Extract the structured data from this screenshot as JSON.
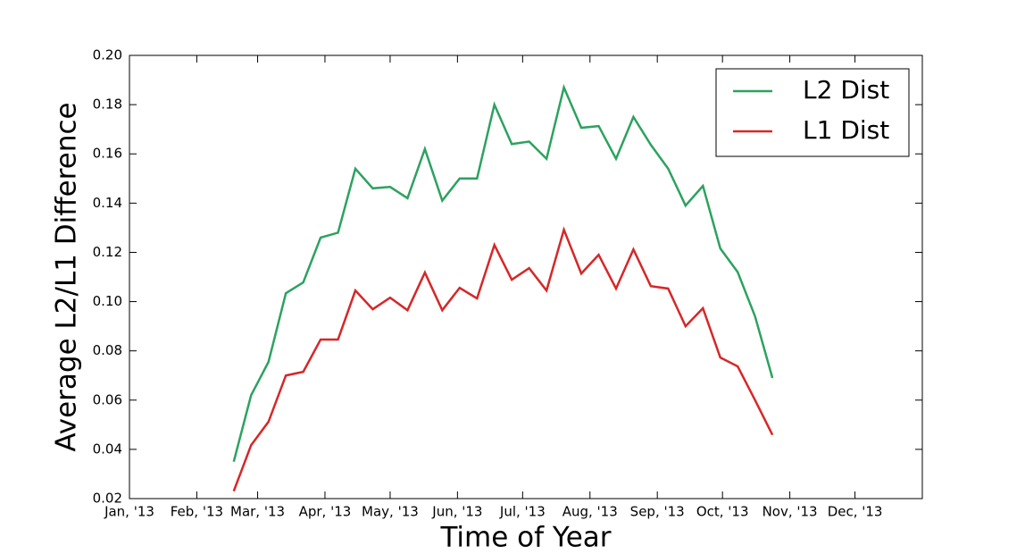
{
  "chart_data": {
    "type": "line",
    "xlabel": "Time of Year",
    "ylabel": "Average L2/L1 Difference",
    "x": [
      48,
      56,
      64,
      72,
      80,
      88,
      96,
      104,
      112,
      120,
      128,
      136,
      144,
      152,
      160,
      168,
      176,
      184,
      192,
      200,
      208,
      216,
      224,
      232,
      240,
      248,
      256,
      264,
      272,
      280,
      288,
      296
    ],
    "series": [
      {
        "name": "L2 Dist",
        "color": "#2ca25f",
        "values": [
          0.035,
          0.062,
          0.0755,
          0.1034,
          0.1078,
          0.126,
          0.128,
          0.154,
          0.146,
          0.1466,
          0.142,
          0.162,
          0.141,
          0.15,
          0.15,
          0.18,
          0.164,
          0.165,
          0.158,
          0.187,
          0.1706,
          0.1713,
          0.158,
          0.175,
          0.1637,
          0.154,
          0.139,
          0.147,
          0.1216,
          0.112,
          0.094,
          0.069
        ]
      },
      {
        "name": "L1 Dist",
        "color": "#d62728",
        "values": [
          0.023,
          0.0417,
          0.0512,
          0.07,
          0.0715,
          0.0846,
          0.0846,
          0.1045,
          0.0969,
          0.1016,
          0.0965,
          0.1118,
          0.0965,
          0.1056,
          0.1013,
          0.123,
          0.1089,
          0.1136,
          0.1045,
          0.1292,
          0.1114,
          0.119,
          0.1053,
          0.1212,
          0.1063,
          0.1053,
          0.09,
          0.0973,
          0.0773,
          0.0737,
          0.06,
          0.0459
        ]
      }
    ],
    "xlim": [
      0,
      365
    ],
    "xticks": [
      {
        "value": 0,
        "label": "Jan, '13"
      },
      {
        "value": 31,
        "label": "Feb, '13"
      },
      {
        "value": 59,
        "label": "Mar, '13"
      },
      {
        "value": 90,
        "label": "Apr, '13"
      },
      {
        "value": 120,
        "label": "May, '13"
      },
      {
        "value": 151,
        "label": "Jun, '13"
      },
      {
        "value": 181,
        "label": "Jul, '13"
      },
      {
        "value": 212,
        "label": "Aug, '13"
      },
      {
        "value": 243,
        "label": "Sep, '13"
      },
      {
        "value": 273,
        "label": "Oct, '13"
      },
      {
        "value": 304,
        "label": "Nov, '13"
      },
      {
        "value": 334,
        "label": "Dec, '13"
      }
    ],
    "ylim": [
      0.02,
      0.2
    ],
    "yticks": [
      0.02,
      0.04,
      0.06,
      0.08,
      {
        "value": 0.1,
        "label": "0.10"
      },
      0.12,
      0.14,
      0.16,
      0.18,
      {
        "value": 0.2,
        "label": "0.20"
      }
    ],
    "legend": "upper right",
    "grid": false
  }
}
